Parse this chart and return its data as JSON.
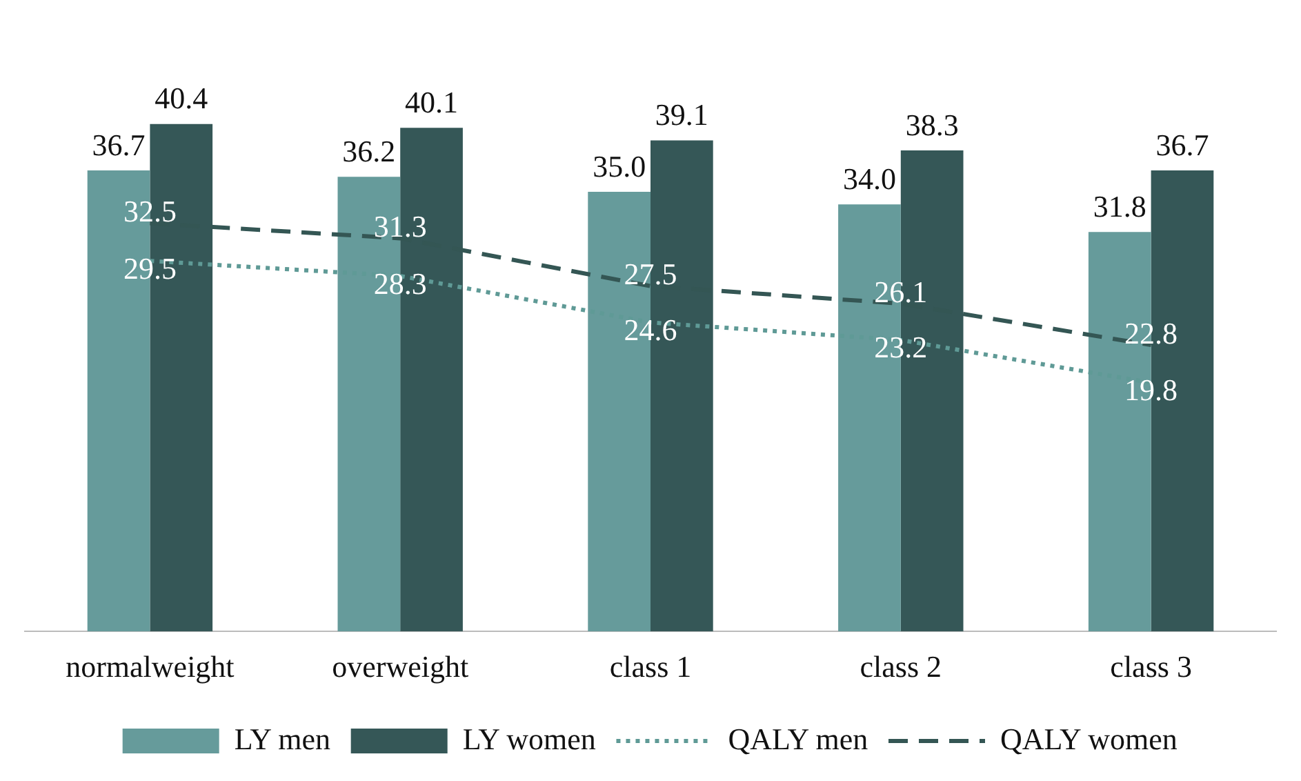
{
  "chart_data": {
    "type": "bar",
    "categories": [
      "normalweight",
      "overweight",
      "class 1",
      "class 2",
      "class 3"
    ],
    "series": [
      {
        "name": "LY men",
        "color": "#669b9b",
        "values": [
          36.7,
          36.2,
          35.0,
          34.0,
          31.8
        ],
        "value_labels": [
          "36.7",
          "36.2",
          "35.0",
          "34.0",
          "31.8"
        ]
      },
      {
        "name": "LY women",
        "color": "#355757",
        "values": [
          40.4,
          40.1,
          39.1,
          38.3,
          36.7
        ],
        "value_labels": [
          "40.4",
          "40.1",
          "39.1",
          "38.3",
          "36.7"
        ]
      },
      {
        "name": "QALY men",
        "type": "line",
        "line_style": "dotted",
        "color": "#5f9a96",
        "values": [
          29.5,
          28.3,
          24.6,
          23.2,
          19.8
        ],
        "value_labels": [
          "29.5",
          "28.3",
          "24.6",
          "23.2",
          "19.8"
        ]
      },
      {
        "name": "QALY women",
        "type": "line",
        "line_style": "dashed",
        "color": "#345654",
        "values": [
          32.5,
          31.3,
          27.5,
          26.1,
          22.8
        ],
        "value_labels": [
          "32.5",
          "31.3",
          "27.5",
          "26.1",
          "22.8"
        ]
      }
    ],
    "legend": "bottom",
    "grid": false,
    "marker": "none"
  }
}
